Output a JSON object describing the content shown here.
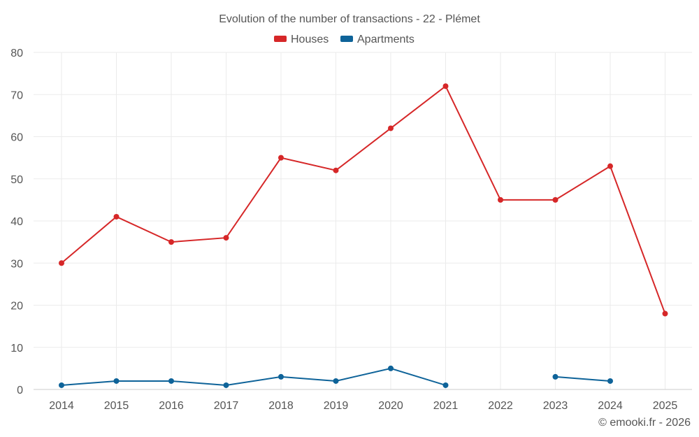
{
  "chart_data": {
    "type": "line",
    "title": "Evolution of the number of transactions - 22 - Plémet",
    "categories": [
      "2014",
      "2015",
      "2016",
      "2017",
      "2018",
      "2019",
      "2020",
      "2021",
      "2022",
      "2023",
      "2024",
      "2025"
    ],
    "ylim": [
      0,
      80
    ],
    "yticks": [
      0,
      10,
      20,
      30,
      40,
      50,
      60,
      70,
      80
    ],
    "grid": true,
    "legend_position": "top-center",
    "series": [
      {
        "name": "Houses",
        "color": "#d62728",
        "values": [
          30,
          41,
          35,
          36,
          55,
          52,
          62,
          72,
          45,
          45,
          53,
          18
        ]
      },
      {
        "name": "Apartments",
        "color": "#0e6399",
        "values": [
          1,
          2,
          2,
          1,
          3,
          2,
          5,
          1,
          null,
          3,
          2,
          null
        ]
      }
    ],
    "credit": "© emooki.fr - 2026"
  }
}
